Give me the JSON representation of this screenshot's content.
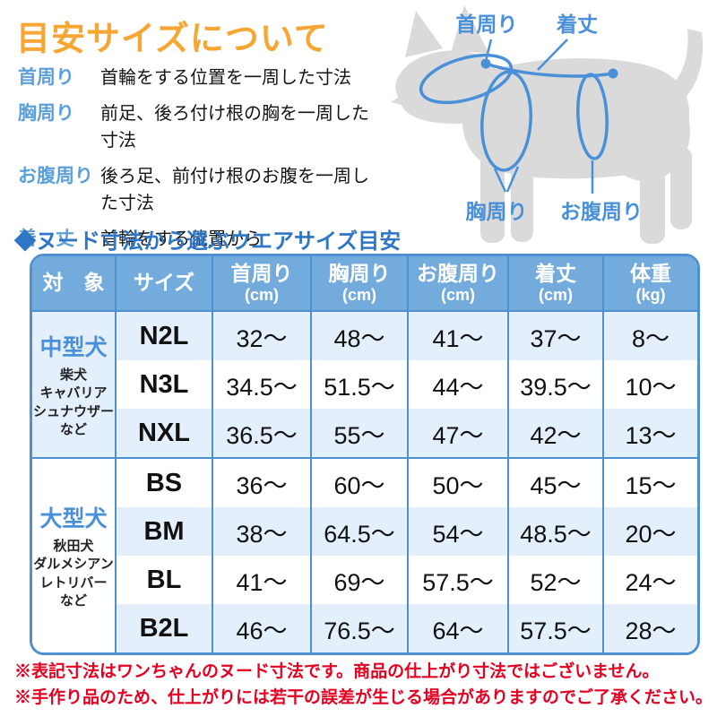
{
  "title": "目安サイズについて",
  "definitions": [
    {
      "term": "首周り",
      "desc": "首輪をする位置を一周した寸法"
    },
    {
      "term": "胸周り",
      "desc": "前足、後ろ付け根の胸を一周した寸法"
    },
    {
      "term": "お腹周り",
      "desc": "後ろ足、前付け根のお腹を一周した寸法"
    },
    {
      "term": "着　丈",
      "desc": "首輪をする位置から\n尻尾の手前までの寸法"
    }
  ],
  "diagram": {
    "labels": {
      "neck": "首周り",
      "length": "着丈",
      "chest": "胸周り",
      "belly": "お腹周り"
    }
  },
  "section_title": "◆ヌード寸法から選ぶウエアサイズ目安",
  "table": {
    "headers": [
      {
        "label": "対　象",
        "unit": ""
      },
      {
        "label": "サイズ",
        "unit": ""
      },
      {
        "label": "首周り",
        "unit": "(cm)"
      },
      {
        "label": "胸周り",
        "unit": "(cm)"
      },
      {
        "label": "お腹周り",
        "unit": "(cm)"
      },
      {
        "label": "着丈",
        "unit": "(cm)"
      },
      {
        "label": "体重",
        "unit": "(kg)"
      }
    ],
    "groups": [
      {
        "name": "中型犬",
        "breeds": [
          "柴犬",
          "キャバリア",
          "シュナウザー",
          "など"
        ],
        "rows": [
          {
            "size": "N2L",
            "values": [
              "32〜",
              "48〜",
              "41〜",
              "37〜",
              "8〜"
            ]
          },
          {
            "size": "N3L",
            "values": [
              "34.5〜",
              "51.5〜",
              "44〜",
              "39.5〜",
              "10〜"
            ]
          },
          {
            "size": "NXL",
            "values": [
              "36.5〜",
              "55〜",
              "47〜",
              "42〜",
              "13〜"
            ]
          }
        ]
      },
      {
        "name": "大型犬",
        "breeds": [
          "秋田犬",
          "ダルメシアン",
          "レトリバー",
          "など"
        ],
        "rows": [
          {
            "size": "BS",
            "values": [
              "36〜",
              "60〜",
              "50〜",
              "45〜",
              "15〜"
            ]
          },
          {
            "size": "BM",
            "values": [
              "38〜",
              "64.5〜",
              "54〜",
              "48.5〜",
              "20〜"
            ]
          },
          {
            "size": "BL",
            "values": [
              "41〜",
              "69〜",
              "57.5〜",
              "52〜",
              "24〜"
            ]
          },
          {
            "size": "B2L",
            "values": [
              "46〜",
              "76.5〜",
              "64〜",
              "57.5〜",
              "28〜"
            ]
          }
        ]
      }
    ]
  },
  "notes": [
    "※表記寸法はワンちゃんのヌード寸法です。商品の仕上がり寸法ではございません。",
    "※手作り品のため、仕上がりには若干の誤差が生じる場合がありますのでご了承ください。"
  ],
  "colors": {
    "title_orange": "#F7A633",
    "label_blue": "#5C9FD9",
    "section_blue": "#2F76C4",
    "table_header_blue": "#74ABDD",
    "table_border_blue": "#4E90D0",
    "row_light_blue": "#E3F0FB",
    "group_text_blue": "#4A90D8",
    "note_red": "#E30021",
    "dog_gray": "#DADADA"
  }
}
